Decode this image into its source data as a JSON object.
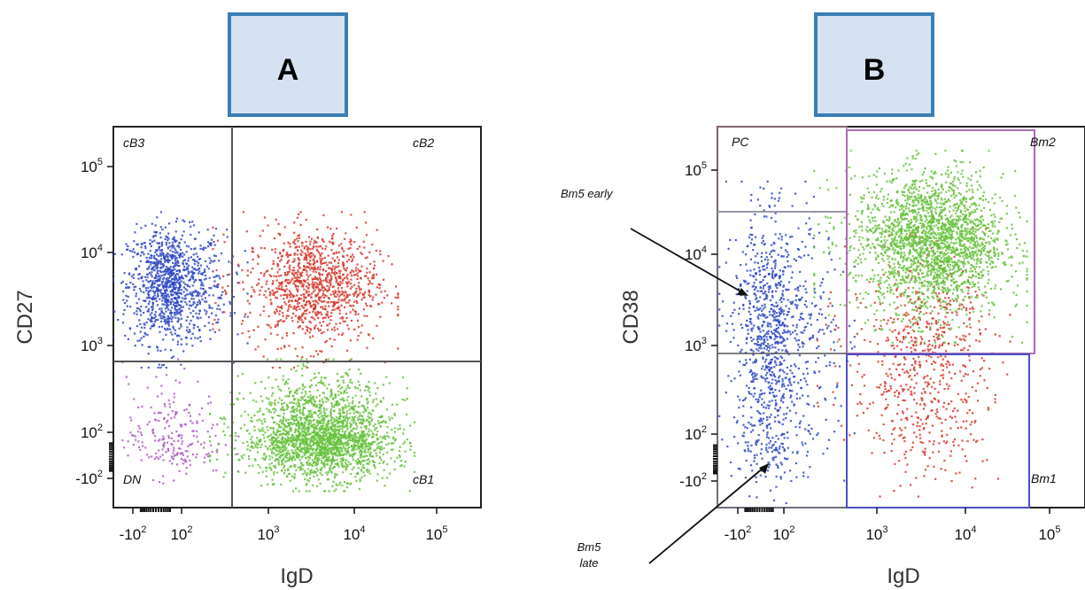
{
  "chart_data": [
    {
      "type": "scatter",
      "panel_label": "A",
      "xlabel": "IgD",
      "ylabel": "CD27",
      "x_scale": "biexponential",
      "y_scale": "biexponential",
      "x_ticks": [
        {
          "value": -100,
          "label": "-10",
          "sup": "2"
        },
        {
          "value": 100,
          "label": "10",
          "sup": "2"
        },
        {
          "value": 1000,
          "label": "10",
          "sup": "3"
        },
        {
          "value": 10000,
          "label": "10",
          "sup": "4"
        },
        {
          "value": 100000,
          "label": "10",
          "sup": "5"
        }
      ],
      "y_ticks": [
        {
          "value": -100,
          "label": "-10",
          "sup": "2"
        },
        {
          "value": 100,
          "label": "10",
          "sup": "2"
        },
        {
          "value": 1000,
          "label": "10",
          "sup": "3"
        },
        {
          "value": 10000,
          "label": "10",
          "sup": "4"
        },
        {
          "value": 100000,
          "label": "10",
          "sup": "5"
        }
      ],
      "gates": {
        "x_threshold": 500,
        "y_threshold": 600
      },
      "quadrant_labels": {
        "top_left": "cB3",
        "top_right": "cB2",
        "bottom_left": "DN",
        "bottom_right": "cB1"
      },
      "populations": [
        {
          "quadrant": "cB3",
          "color": "#2f49c4",
          "x_range": [
            -150,
            400
          ],
          "y_range": [
            1000,
            20000
          ],
          "density": "high"
        },
        {
          "quadrant": "cB2",
          "color": "#d7382a",
          "x_range": [
            500,
            20000
          ],
          "y_range": [
            1000,
            20000
          ],
          "density": "high"
        },
        {
          "quadrant": "DN",
          "color": "#b05cc6",
          "x_range": [
            -150,
            400
          ],
          "y_range": [
            -100,
            500
          ],
          "density": "low"
        },
        {
          "quadrant": "cB1",
          "color": "#66c23d",
          "x_range": [
            500,
            30000
          ],
          "y_range": [
            -100,
            500
          ],
          "density": "very high"
        }
      ]
    },
    {
      "type": "scatter",
      "panel_label": "B",
      "xlabel": "IgD",
      "ylabel": "CD38",
      "x_scale": "biexponential",
      "y_scale": "biexponential",
      "x_ticks": [
        {
          "value": -100,
          "label": "-10",
          "sup": "2"
        },
        {
          "value": 100,
          "label": "10",
          "sup": "2"
        },
        {
          "value": 1000,
          "label": "10",
          "sup": "3"
        },
        {
          "value": 10000,
          "label": "10",
          "sup": "4"
        },
        {
          "value": 100000,
          "label": "10",
          "sup": "5"
        }
      ],
      "y_ticks": [
        {
          "value": -100,
          "label": "-10",
          "sup": "2"
        },
        {
          "value": 100,
          "label": "10",
          "sup": "2"
        },
        {
          "value": 1000,
          "label": "10",
          "sup": "3"
        },
        {
          "value": 10000,
          "label": "10",
          "sup": "4"
        },
        {
          "value": 100000,
          "label": "10",
          "sup": "5"
        }
      ],
      "gates": {
        "x_threshold": 500,
        "y_threshold": 800,
        "pc_y_threshold": 20000
      },
      "gate_labels": {
        "pc": "PC",
        "bm2": "Bm2",
        "bm1": "Bm1"
      },
      "annotations": [
        {
          "text": "Bm5 early",
          "target": {
            "x": 70,
            "y": 4000
          }
        },
        {
          "lines": [
            "Bm5",
            "late"
          ],
          "target": {
            "x": 70,
            "y": -60
          }
        }
      ],
      "populations": [
        {
          "color": "#2f49c4",
          "x_range": [
            -150,
            400
          ],
          "y_range": [
            -100,
            30000
          ],
          "density": "high"
        },
        {
          "color": "#d7382a",
          "x_range": [
            500,
            20000
          ],
          "y_range": [
            -50,
            10000
          ],
          "density": "medium"
        },
        {
          "color": "#66c23d",
          "x_range": [
            500,
            30000
          ],
          "y_range": [
            2000,
            100000
          ],
          "density": "very high"
        }
      ]
    }
  ]
}
